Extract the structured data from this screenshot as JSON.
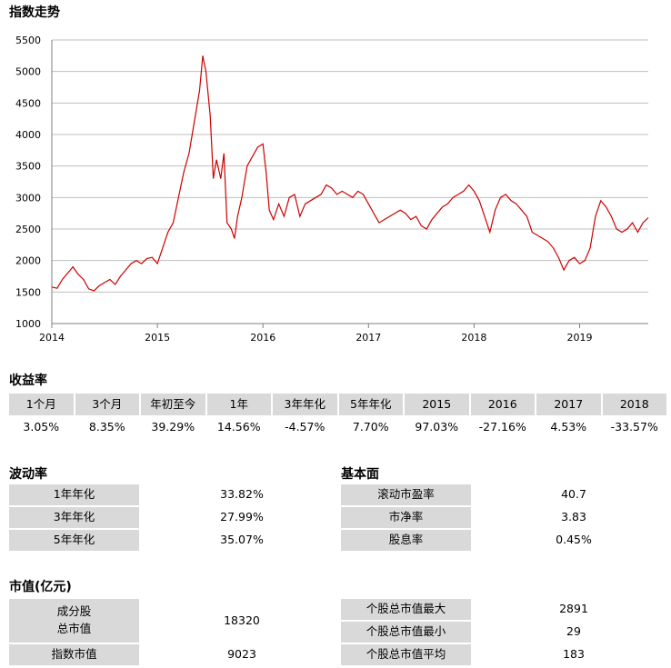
{
  "chart_data": {
    "type": "line",
    "title": "指数走势",
    "color": "#cc0000",
    "x": [
      2014.0,
      2014.05,
      2014.1,
      2014.15,
      2014.2,
      2014.25,
      2014.3,
      2014.35,
      2014.4,
      2014.45,
      2014.5,
      2014.55,
      2014.6,
      2014.65,
      2014.7,
      2014.75,
      2014.8,
      2014.85,
      2014.9,
      2014.95,
      2015.0,
      2015.05,
      2015.1,
      2015.15,
      2015.2,
      2015.25,
      2015.3,
      2015.35,
      2015.4,
      2015.43,
      2015.46,
      2015.5,
      2015.53,
      2015.56,
      2015.6,
      2015.63,
      2015.66,
      2015.7,
      2015.73,
      2015.76,
      2015.8,
      2015.85,
      2015.9,
      2015.95,
      2016.0,
      2016.03,
      2016.06,
      2016.1,
      2016.15,
      2016.2,
      2016.25,
      2016.3,
      2016.35,
      2016.4,
      2016.45,
      2016.5,
      2016.55,
      2016.6,
      2016.65,
      2016.7,
      2016.75,
      2016.8,
      2016.85,
      2016.9,
      2016.95,
      2017.0,
      2017.05,
      2017.1,
      2017.2,
      2017.3,
      2017.35,
      2017.4,
      2017.45,
      2017.5,
      2017.55,
      2017.6,
      2017.7,
      2017.75,
      2017.8,
      2017.85,
      2017.9,
      2017.95,
      2018.0,
      2018.05,
      2018.1,
      2018.15,
      2018.2,
      2018.25,
      2018.3,
      2018.35,
      2018.4,
      2018.45,
      2018.5,
      2018.55,
      2018.6,
      2018.65,
      2018.7,
      2018.75,
      2018.8,
      2018.85,
      2018.9,
      2018.95,
      2019.0,
      2019.05,
      2019.1,
      2019.15,
      2019.2,
      2019.25,
      2019.3,
      2019.35,
      2019.4,
      2019.45,
      2019.5,
      2019.55,
      2019.6,
      2019.65
    ],
    "values": [
      1580,
      1560,
      1700,
      1800,
      1900,
      1780,
      1700,
      1550,
      1520,
      1600,
      1650,
      1700,
      1620,
      1750,
      1850,
      1950,
      2000,
      1950,
      2030,
      2050,
      1950,
      2200,
      2450,
      2600,
      3000,
      3400,
      3700,
      4200,
      4700,
      5250,
      5000,
      4300,
      3300,
      3600,
      3300,
      3700,
      2600,
      2500,
      2350,
      2700,
      3000,
      3500,
      3650,
      3800,
      3850,
      3400,
      2800,
      2650,
      2900,
      2700,
      3000,
      3050,
      2700,
      2900,
      2950,
      3000,
      3050,
      3200,
      3150,
      3050,
      3100,
      3050,
      3000,
      3100,
      3050,
      2900,
      2750,
      2600,
      2700,
      2800,
      2750,
      2650,
      2700,
      2550,
      2500,
      2650,
      2850,
      2900,
      3000,
      3050,
      3100,
      3200,
      3100,
      2950,
      2700,
      2450,
      2800,
      3000,
      3050,
      2950,
      2900,
      2800,
      2700,
      2450,
      2400,
      2350,
      2300,
      2200,
      2050,
      1850,
      2000,
      2050,
      1950,
      2000,
      2200,
      2700,
      2950,
      2850,
      2700,
      2500,
      2450,
      2500,
      2600,
      2450,
      2600,
      2680
    ],
    "xlim": [
      2014,
      2019.65
    ],
    "ylim": [
      1000,
      5500
    ],
    "xticks": [
      2014,
      2015,
      2016,
      2017,
      2018,
      2019
    ],
    "yticks": [
      1000,
      1500,
      2000,
      2500,
      3000,
      3500,
      4000,
      4500,
      5000,
      5500
    ]
  },
  "returns": {
    "title": "收益率",
    "headers": [
      "1个月",
      "3个月",
      "年初至今",
      "1年",
      "3年年化",
      "5年年化",
      "2015",
      "2016",
      "2017",
      "2018"
    ],
    "values": [
      "3.05%",
      "8.35%",
      "39.29%",
      "14.56%",
      "-4.57%",
      "7.70%",
      "97.03%",
      "-27.16%",
      "4.53%",
      "-33.57%"
    ]
  },
  "volatility": {
    "title": "波动率",
    "rows": [
      [
        "1年年化",
        "33.82%"
      ],
      [
        "3年年化",
        "27.99%"
      ],
      [
        "5年年化",
        "35.07%"
      ]
    ]
  },
  "fundamentals": {
    "title": "基本面",
    "rows": [
      [
        "滚动市盈率",
        "40.7"
      ],
      [
        "市净率",
        "3.83"
      ],
      [
        "股息率",
        "0.45%"
      ]
    ]
  },
  "market_cap": {
    "title": "市值(亿元)",
    "left": [
      [
        "成分股\n总市值",
        "18320"
      ],
      [
        "指数市值",
        "9023"
      ]
    ],
    "right": [
      [
        "个股总市值最大",
        "2891"
      ],
      [
        "个股总市值最小",
        "29"
      ],
      [
        "个股总市值平均",
        "183"
      ]
    ]
  }
}
